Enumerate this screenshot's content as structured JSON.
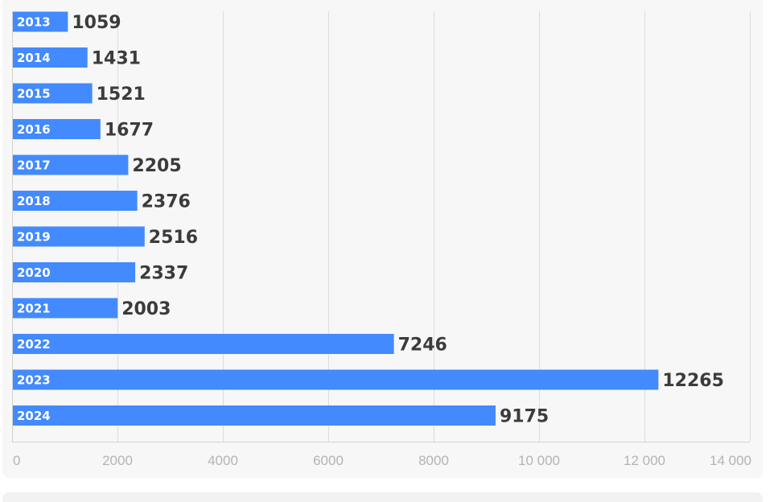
{
  "chart_data": {
    "type": "bar",
    "orientation": "horizontal",
    "categories": [
      "2013",
      "2014",
      "2015",
      "2016",
      "2017",
      "2018",
      "2019",
      "2020",
      "2021",
      "2022",
      "2023",
      "2024"
    ],
    "values": [
      1059,
      1431,
      1521,
      1677,
      2205,
      2376,
      2516,
      2337,
      2003,
      7246,
      12265,
      9175
    ],
    "value_labels": [
      "1059",
      "1431",
      "1521",
      "1677",
      "2205",
      "2376",
      "2516",
      "2337",
      "2003",
      "7246",
      "12265",
      "9175"
    ],
    "title": "",
    "xlabel": "",
    "ylabel": "",
    "xlim": [
      0,
      14000
    ],
    "x_ticks": [
      0,
      2000,
      4000,
      6000,
      8000,
      10000,
      12000,
      14000
    ],
    "x_tick_labels": [
      "0",
      "2000",
      "4000",
      "6000",
      "8000",
      "10 000",
      "12 000",
      "14 000"
    ],
    "grid": true,
    "legend": "none",
    "bar_color": "#448aff",
    "background_color": "#f7f7f7",
    "gridline_color": "#dcdcdc"
  }
}
